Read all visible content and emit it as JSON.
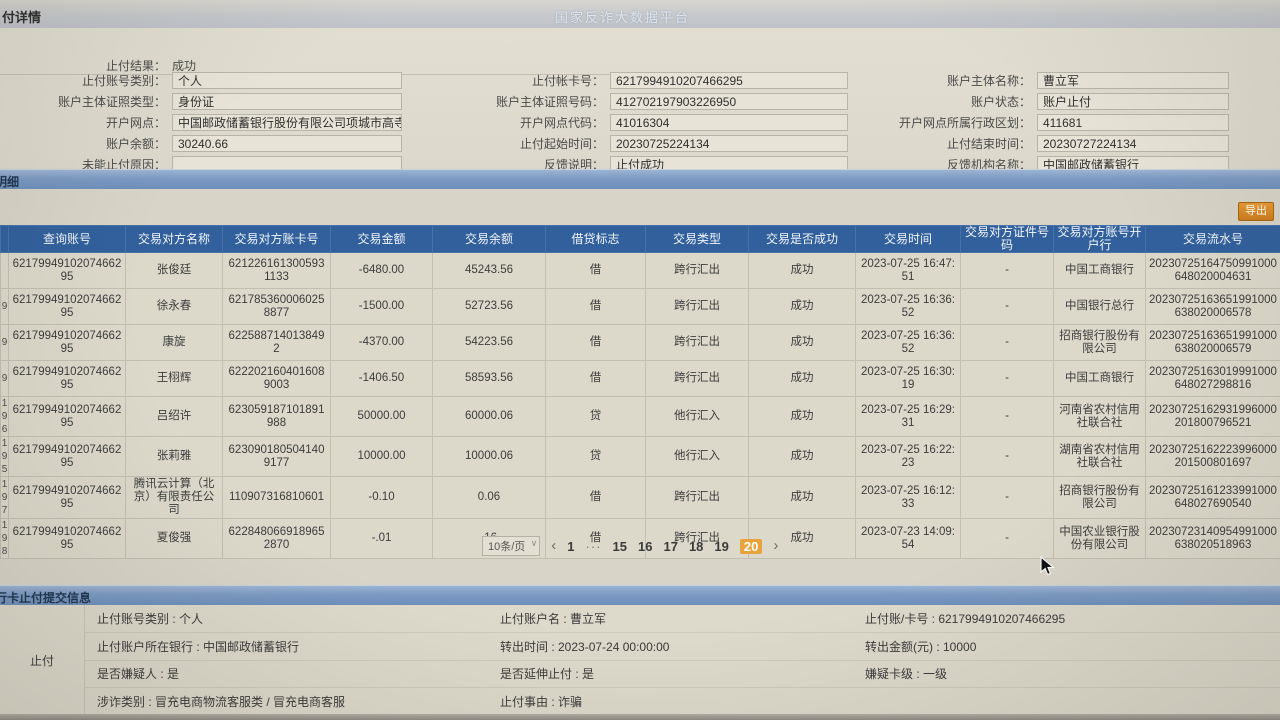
{
  "colors": {
    "header_blue": "#31609d",
    "section_bar_blue": "#7b9ac3",
    "export_orange": "#cd7d1c",
    "active_page_orange": "#e8a33d",
    "panel_beige": "#dcd9cb"
  },
  "header": {
    "window_title": "付详情",
    "platform_title": "国家反诈大数据平台"
  },
  "detail_form": {
    "result_label": "止付结果：",
    "result_value": "成功",
    "col1": [
      {
        "label": "止付账号类别：",
        "value": "个人"
      },
      {
        "label": "账户主体证照类型：",
        "value": "身份证"
      },
      {
        "label": "开户网点：",
        "value": "中国邮政储蓄银行股份有限公司项城市高寺..."
      },
      {
        "label": "账户余额：",
        "value": "30240.66"
      },
      {
        "label": "未能止付原因：",
        "value": ""
      }
    ],
    "col2": [
      {
        "label": "止付帐卡号：",
        "value": "6217994910207466295"
      },
      {
        "label": "账户主体证照号码：",
        "value": "412702197903226950"
      },
      {
        "label": "开户网点代码：",
        "value": "41016304"
      },
      {
        "label": "止付起始时间：",
        "value": "20230725224134"
      },
      {
        "label": "反馈说明：",
        "value": "止付成功"
      }
    ],
    "col3": [
      {
        "label": "账户主体名称：",
        "value": "曹立军"
      },
      {
        "label": "账户状态：",
        "value": "账户止付"
      },
      {
        "label": "开户网点所属行政区划：",
        "value": "411681"
      },
      {
        "label": "止付结束时间：",
        "value": "20230727224134"
      },
      {
        "label": "反馈机构名称：",
        "value": "中国邮政储蓄银行"
      }
    ]
  },
  "detail_section_title": "明细",
  "table": {
    "export_label": "导出",
    "headers": [
      "查询账号",
      "交易对方名称",
      "交易对方账卡号",
      "交易金额",
      "交易余额",
      "借贷标志",
      "交易类型",
      "交易是否成功",
      "交易时间",
      "交易对方证件号码",
      "交易对方账号开户行",
      "交易流水号"
    ],
    "rows": [
      {
        "cut": "",
        "account": "6217994910207466295",
        "party": "张俊廷",
        "party_account": "6212261613005931133",
        "amount": "-6480.00",
        "balance": "45243.56",
        "flag": "借",
        "type": "跨行汇出",
        "success": "成功",
        "time": "2023-07-25 16:47:51",
        "party_id": "-",
        "party_bank": "中国工商银行",
        "serial": "20230725164750991000648020004631"
      },
      {
        "cut": "9",
        "account": "6217994910207466295",
        "party": "徐永春",
        "party_account": "6217853600060258877",
        "amount": "-1500.00",
        "balance": "52723.56",
        "flag": "借",
        "type": "跨行汇出",
        "success": "成功",
        "time": "2023-07-25 16:36:52",
        "party_id": "-",
        "party_bank": "中国银行总行",
        "serial": "20230725163651991000638020006578"
      },
      {
        "cut": "9",
        "account": "6217994910207466295",
        "party": "康旋",
        "party_account": "6225887140138492",
        "amount": "-4370.00",
        "balance": "54223.56",
        "flag": "借",
        "type": "跨行汇出",
        "success": "成功",
        "time": "2023-07-25 16:36:52",
        "party_id": "-",
        "party_bank": "招商银行股份有限公司",
        "serial": "20230725163651991000638020006579"
      },
      {
        "cut": "9",
        "account": "6217994910207466295",
        "party": "王栩辉",
        "party_account": "6222021604016089003",
        "amount": "-1406.50",
        "balance": "58593.56",
        "flag": "借",
        "type": "跨行汇出",
        "success": "成功",
        "time": "2023-07-25 16:30:19",
        "party_id": "-",
        "party_bank": "中国工商银行",
        "serial": "20230725163019991000648027298816"
      },
      {
        "cut": "19 6",
        "account": "6217994910207466295",
        "party": "吕绍许",
        "party_account": "623059187101891988",
        "amount": "50000.00",
        "balance": "60000.06",
        "flag": "贷",
        "type": "他行汇入",
        "success": "成功",
        "time": "2023-07-25 16:29:31",
        "party_id": "-",
        "party_bank": "河南省农村信用社联合社",
        "serial": "20230725162931996000201800796521"
      },
      {
        "cut": "19 5",
        "account": "6217994910207466295",
        "party": "张莉雅",
        "party_account": "6230901805041409177",
        "amount": "10000.00",
        "balance": "10000.06",
        "flag": "贷",
        "type": "他行汇入",
        "success": "成功",
        "time": "2023-07-25 16:22:23",
        "party_id": "-",
        "party_bank": "湖南省农村信用社联合社",
        "serial": "20230725162223996000201500801697"
      },
      {
        "cut": "19 7",
        "account": "6217994910207466295",
        "party": "腾讯云计算（北京）有限责任公司",
        "party_account": "110907316810601",
        "amount": "-0.10",
        "balance": "0.06",
        "flag": "借",
        "type": "跨行汇出",
        "success": "成功",
        "time": "2023-07-25 16:12:33",
        "party_id": "-",
        "party_bank": "招商银行股份有限公司",
        "serial": "20230725161233991000648027690540"
      },
      {
        "cut": "19 8",
        "account": "6217994910207466295",
        "party": "夏俊强",
        "party_account": "6228480669189652870",
        "amount": "-.01",
        "balance": ".16",
        "flag": "借",
        "type": "跨行汇出",
        "success": "成功",
        "time": "2023-07-23 14:09:54",
        "party_id": "-",
        "party_bank": "中国农业银行股份有限公司",
        "serial": "20230723140954991000638020518963"
      }
    ],
    "pagination": {
      "page_size": "10条/页",
      "prev": "‹",
      "next": "›",
      "pages": [
        "1",
        "···",
        "15",
        "16",
        "17",
        "18",
        "19",
        "20"
      ],
      "current": "20"
    }
  },
  "submit_info": {
    "section_title": "行卡止付提交信息",
    "row_label": "止付",
    "sep": " : ",
    "rows": [
      [
        {
          "label": "止付账号类别",
          "value": "个人"
        },
        {
          "label": "止付账户名",
          "value": "曹立军"
        },
        {
          "label": "止付账/卡号",
          "value": "6217994910207466295"
        }
      ],
      [
        {
          "label": "止付账户所在银行",
          "value": "中国邮政储蓄银行"
        },
        {
          "label": "转出时间",
          "value": "2023-07-24 00:00:00"
        },
        {
          "label": "转出金额(元)",
          "value": "10000"
        }
      ],
      [
        {
          "label": "是否嫌疑人",
          "value": "是"
        },
        {
          "label": "是否延伸止付",
          "value": "是"
        },
        {
          "label": "嫌疑卡级",
          "value": "一级"
        }
      ],
      [
        {
          "label": "涉诈类别",
          "value": "冒充电商物流客服类 / 冒充电商客服"
        },
        {
          "label": "止付事由",
          "value": "诈骗"
        },
        {
          "label": "",
          "value": ""
        }
      ]
    ]
  }
}
